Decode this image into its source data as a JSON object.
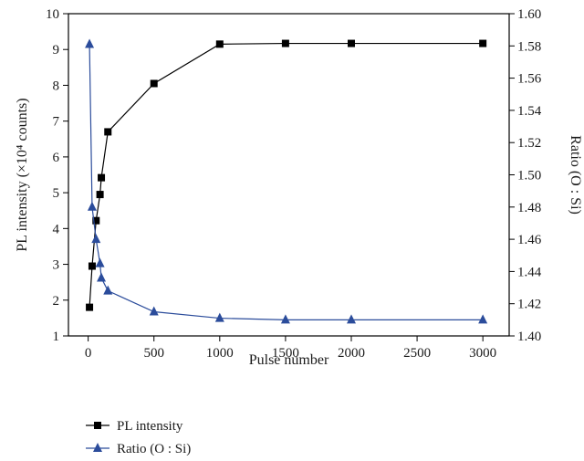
{
  "chart_data": {
    "type": "line",
    "xlabel": "Pulse number",
    "ylabel_left": "PL intensity (×10⁴ counts)",
    "ylabel_right": "Ratio (O : Si)",
    "xlim": [
      -150,
      3200
    ],
    "ylim_left": [
      1,
      10
    ],
    "ylim_right": [
      1.4,
      1.6
    ],
    "x_ticks": [
      0,
      500,
      1000,
      1500,
      2000,
      2500,
      3000
    ],
    "x_tick_labels": [
      "0",
      "500",
      "1000",
      "1500",
      "2000",
      "2500",
      "3000"
    ],
    "y_left_ticks": [
      1,
      2,
      3,
      4,
      5,
      6,
      7,
      8,
      9,
      10
    ],
    "y_left_tick_labels": [
      "1",
      "2",
      "3",
      "4",
      "5",
      "6",
      "7",
      "8",
      "9",
      "10"
    ],
    "y_right_ticks": [
      1.4,
      1.42,
      1.44,
      1.46,
      1.48,
      1.5,
      1.52,
      1.54,
      1.56,
      1.58,
      1.6
    ],
    "y_right_tick_labels": [
      "1.40",
      "1.42",
      "1.44",
      "1.46",
      "1.48",
      "1.50",
      "1.52",
      "1.54",
      "1.56",
      "1.58",
      "1.60"
    ],
    "grid": false,
    "legend_position": "bottom-left, below plot",
    "series": [
      {
        "name": "PL intensity",
        "axis": "left",
        "marker": "square",
        "color": "#000000",
        "x": [
          10,
          30,
          60,
          90,
          100,
          150,
          500,
          1000,
          1500,
          2000,
          3000
        ],
        "y": [
          1.8,
          2.95,
          4.22,
          4.95,
          5.42,
          6.7,
          8.05,
          9.15,
          9.17,
          9.17,
          9.17
        ]
      },
      {
        "name": "Ratio (O : Si)",
        "axis": "right",
        "marker": "triangle",
        "color": "#2b4c9b",
        "x": [
          10,
          30,
          60,
          90,
          100,
          150,
          500,
          1000,
          1500,
          2000,
          3000
        ],
        "y": [
          1.581,
          1.48,
          1.46,
          1.445,
          1.436,
          1.428,
          1.415,
          1.411,
          1.41,
          1.41,
          1.41
        ]
      }
    ]
  }
}
